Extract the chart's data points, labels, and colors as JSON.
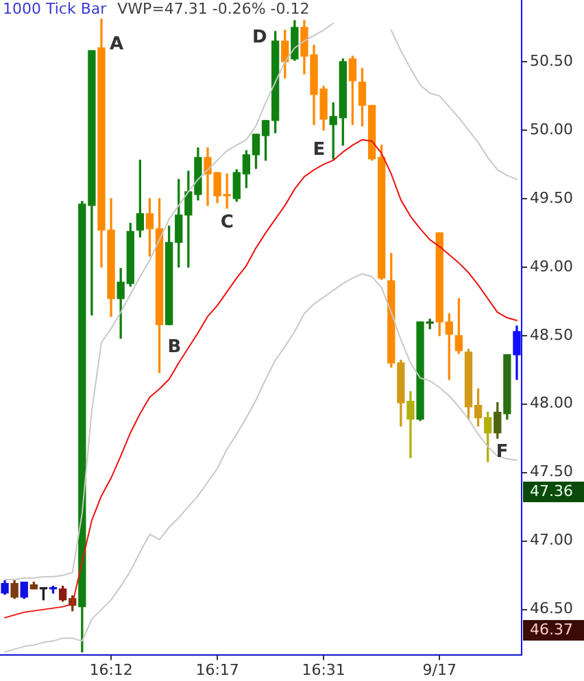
{
  "chart_data": {
    "type": "candlestick",
    "title": "1000 Tick Bar",
    "subtitle": "VWP=47.31 -0.26% -0.12",
    "categories": [
      null,
      null,
      null,
      null,
      null,
      null,
      null,
      null,
      null,
      null,
      null,
      "16:12",
      null,
      null,
      null,
      null,
      null,
      null,
      null,
      null,
      null,
      null,
      "16:17",
      null,
      null,
      null,
      null,
      null,
      null,
      null,
      null,
      null,
      null,
      "16:31",
      null,
      null,
      null,
      null,
      null,
      null,
      null,
      null,
      null,
      null,
      null,
      "9/17",
      null,
      null,
      null,
      null,
      null,
      null,
      null,
      null
    ],
    "ohlc": [
      [
        46.62,
        46.71,
        46.61,
        46.69
      ],
      [
        46.69,
        46.71,
        46.58,
        46.59
      ],
      [
        46.59,
        46.7,
        46.58,
        46.7
      ],
      [
        46.68,
        46.7,
        46.65,
        46.65
      ],
      [
        46.65,
        46.66,
        46.57,
        46.65
      ],
      [
        46.65,
        46.67,
        46.62,
        46.65
      ],
      [
        46.65,
        46.67,
        46.56,
        46.57
      ],
      [
        46.58,
        46.6,
        46.49,
        46.53
      ],
      [
        46.52,
        49.48,
        46.19,
        49.46
      ],
      [
        49.45,
        50.58,
        48.65,
        50.58
      ],
      [
        50.6,
        50.81,
        49.0,
        49.27
      ],
      [
        49.27,
        49.5,
        48.64,
        48.77
      ],
      [
        48.77,
        48.99,
        48.48,
        48.89
      ],
      [
        48.88,
        49.32,
        48.86,
        49.26
      ],
      [
        49.27,
        49.78,
        49.22,
        49.39
      ],
      [
        49.39,
        49.5,
        49.08,
        49.28
      ],
      [
        49.28,
        49.5,
        48.23,
        48.58
      ],
      [
        48.58,
        49.3,
        48.58,
        49.18
      ],
      [
        49.18,
        49.64,
        49.0,
        49.38
      ],
      [
        49.38,
        49.7,
        49.0,
        49.55
      ],
      [
        49.53,
        49.87,
        49.49,
        49.8
      ],
      [
        49.8,
        49.87,
        49.45,
        49.68
      ],
      [
        49.69,
        49.69,
        49.47,
        49.52
      ],
      [
        49.53,
        49.68,
        49.43,
        49.52
      ],
      [
        49.5,
        49.71,
        49.48,
        49.69
      ],
      [
        49.68,
        49.85,
        49.58,
        49.82
      ],
      [
        49.82,
        49.97,
        49.72,
        49.97
      ],
      [
        49.96,
        50.07,
        49.78,
        50.07
      ],
      [
        50.07,
        50.72,
        49.98,
        50.65
      ],
      [
        50.65,
        50.73,
        50.38,
        50.5
      ],
      [
        50.52,
        50.8,
        50.51,
        50.75
      ],
      [
        50.75,
        50.8,
        50.41,
        50.54
      ],
      [
        50.55,
        50.62,
        50.04,
        50.26
      ],
      [
        50.3,
        50.32,
        50.0,
        50.08
      ],
      [
        50.04,
        50.2,
        49.79,
        50.1
      ],
      [
        50.09,
        50.52,
        49.89,
        50.5
      ],
      [
        50.52,
        50.54,
        50.04,
        50.36
      ],
      [
        50.35,
        50.45,
        50.03,
        50.18
      ],
      [
        50.18,
        50.18,
        49.78,
        49.79
      ],
      [
        49.8,
        49.89,
        48.91,
        48.92
      ],
      [
        48.9,
        49.1,
        48.27,
        48.3
      ],
      [
        48.3,
        48.32,
        47.84,
        48.01
      ],
      [
        48.02,
        48.09,
        47.61,
        47.89
      ],
      [
        47.89,
        48.6,
        47.88,
        48.6
      ],
      [
        48.59,
        48.62,
        48.55,
        48.59
      ],
      [
        49.25,
        49.25,
        48.5,
        48.6
      ],
      [
        48.6,
        48.66,
        48.18,
        48.51
      ],
      [
        48.5,
        48.77,
        48.37,
        48.39
      ],
      [
        48.38,
        48.4,
        47.89,
        47.98
      ],
      [
        47.99,
        48.11,
        47.84,
        47.9
      ],
      [
        47.9,
        47.94,
        47.58,
        47.79
      ],
      [
        47.79,
        48.01,
        47.75,
        47.94
      ],
      [
        47.93,
        48.36,
        47.89,
        48.36
      ],
      [
        48.36,
        48.57,
        48.18,
        48.53
      ]
    ],
    "colors": [
      "#1010e0",
      "#7a3a12",
      "#1010e0",
      "#7a3a12",
      "#202020",
      "#1010e0",
      "#8b1a10",
      "#7a3a12",
      "#108010",
      "#108010",
      "#ff8a00",
      "#ff8a00",
      "#108010",
      "#108010",
      "#108010",
      "#ff8a00",
      "#ff8a00",
      "#108010",
      "#108010",
      "#108010",
      "#108010",
      "#ff8a00",
      "#ff8a00",
      "#ff8a00",
      "#108010",
      "#108010",
      "#108010",
      "#108010",
      "#108010",
      "#ff8a00",
      "#108010",
      "#ff8a00",
      "#ff8a00",
      "#ff8a00",
      "#108010",
      "#108010",
      "#ff8a00",
      "#ff8a00",
      "#ff8a00",
      "#ff8a00",
      "#ff8a00",
      "#d09a18",
      "#b0b010",
      "#108010",
      "#206a10",
      "#ff8a00",
      "#ff8a00",
      "#ff8a00",
      "#d09a18",
      "#d09a18",
      "#b0b010",
      "#4f6410",
      "#2a7010",
      "#1010ff"
    ],
    "series": [
      {
        "type": "line",
        "color": "#ee1111",
        "values": [
          46.44,
          46.46,
          46.48,
          46.49,
          46.5,
          46.51,
          46.52,
          46.54,
          46.85,
          47.15,
          47.33,
          47.46,
          47.62,
          47.79,
          47.93,
          48.05,
          48.11,
          48.18,
          48.3,
          48.41,
          48.52,
          48.64,
          48.72,
          48.82,
          48.92,
          49.01,
          49.14,
          49.25,
          49.35,
          49.45,
          49.57,
          49.66,
          49.71,
          49.75,
          49.78,
          49.84,
          49.89,
          49.93,
          49.92,
          49.83,
          49.68,
          49.49,
          49.37,
          49.28,
          49.2,
          49.15,
          49.09,
          49.03,
          48.96,
          48.87,
          48.77,
          48.67,
          48.63,
          48.61
        ]
      },
      {
        "type": "line",
        "color": "#c8c8c8",
        "values": [
          46.72,
          46.72,
          46.73,
          46.73,
          46.74,
          46.74,
          46.75,
          46.77,
          47.2,
          47.95,
          48.45,
          48.55,
          48.67,
          48.8,
          48.93,
          49.05,
          49.2,
          49.35,
          49.45,
          49.55,
          49.64,
          49.71,
          49.78,
          49.85,
          49.89,
          49.93,
          50.03,
          50.2,
          50.35,
          50.5,
          50.6,
          50.65,
          50.69,
          50.73,
          50.78,
          null,
          null,
          null,
          null,
          null,
          50.73,
          50.58,
          50.45,
          50.33,
          50.27,
          50.25,
          50.17,
          50.09,
          50.0,
          49.91,
          49.8,
          49.71,
          49.67,
          49.64
        ]
      },
      {
        "type": "line",
        "color": "#c8c8c8",
        "values": [
          46.19,
          46.21,
          46.23,
          46.24,
          46.26,
          46.27,
          46.29,
          46.29,
          46.27,
          46.43,
          46.5,
          46.57,
          46.67,
          46.78,
          46.92,
          47.05,
          47.01,
          47.1,
          47.17,
          47.25,
          47.33,
          47.43,
          47.53,
          47.67,
          47.78,
          47.9,
          48.03,
          48.18,
          48.32,
          48.42,
          48.53,
          48.66,
          48.73,
          48.78,
          48.83,
          48.88,
          48.92,
          48.95,
          48.93,
          48.85,
          48.67,
          48.47,
          48.3,
          48.19,
          48.17,
          48.12,
          48.06,
          47.98,
          47.89,
          47.78,
          47.69,
          47.62,
          47.6,
          47.59
        ]
      }
    ],
    "ylim": [
      46.17,
      50.95
    ],
    "yticks": [
      {
        "value": 46.5,
        "label": "46.50"
      },
      {
        "value": 47,
        "label": "47.00"
      },
      {
        "value": 47.5,
        "label": "47.50"
      },
      {
        "value": 48,
        "label": "48.00"
      },
      {
        "value": 48.5,
        "label": "48.50"
      },
      {
        "value": 49,
        "label": "49.00"
      },
      {
        "value": 49.5,
        "label": "49.50"
      },
      {
        "value": 50,
        "label": "50.00"
      },
      {
        "value": 50.5,
        "label": "50.50"
      }
    ],
    "annotations": [
      "A",
      "B",
      "C",
      "D",
      "E",
      "F",
      "47.36",
      "46.37"
    ]
  }
}
